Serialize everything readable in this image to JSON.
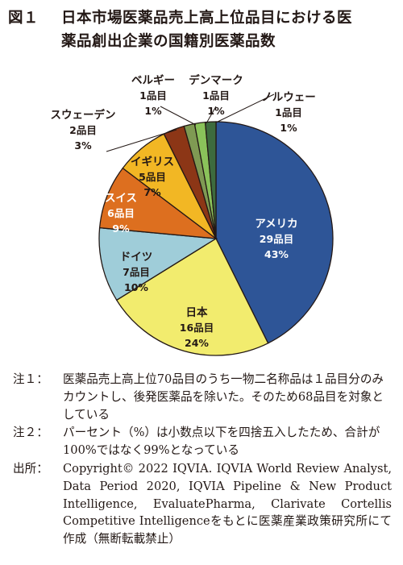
{
  "title": {
    "number": "図１",
    "line1": "日本市場医薬品売上高上位品目における医",
    "line2": "薬品創出企業の国籍別医薬品数"
  },
  "chart_data": {
    "type": "pie",
    "categories": [
      "アメリカ",
      "日本",
      "ドイツ",
      "スイス",
      "イギリス",
      "スウェーデン",
      "ベルギー",
      "デンマーク",
      "ノルウェー"
    ],
    "counts": [
      "29品目",
      "16品目",
      "7品目",
      "6品目",
      "5品目",
      "2品目",
      "1品目",
      "1品目",
      "1品目"
    ],
    "percents": [
      "43%",
      "24%",
      "10%",
      "9%",
      "7%",
      "3%",
      "1%",
      "1%",
      "1%"
    ],
    "values": [
      29,
      16,
      7,
      6,
      5,
      2,
      1,
      1,
      1
    ],
    "colors": [
      "#2e5597",
      "#f2ec6e",
      "#9fcdd9",
      "#dd6f1f",
      "#f2b724",
      "#8c3616",
      "#7f9a53",
      "#8ac25a",
      "#3d6b3e"
    ],
    "label_colors": [
      "#ffffff",
      "#231815",
      "#231815",
      "#ffffff",
      "#231815",
      "#231815",
      "#231815",
      "#231815",
      "#231815"
    ]
  },
  "notes": [
    {
      "label": "注１：",
      "text": "医薬品売上高上位70品目のうち一物二名称品は１品目分のみカウントし、後発医薬品を除いた。そのため68品目を対象としている"
    },
    {
      "label": "注２：",
      "text": "パーセント（%）は小数点以下を四捨五入したため、合計が100%ではなく99%となっている"
    }
  ],
  "source": {
    "label": "出所：",
    "text": "Copyright© 2022 IQVIA. IQVIA World Review Analyst, Data Period 2020, IQVIA Pipeline & New Product Intelligence, EvaluatePharma, Clarivate Cortellis Competitive Intelligenceをもとに医薬産業政策研究所にて作成（無断転載禁止）"
  }
}
